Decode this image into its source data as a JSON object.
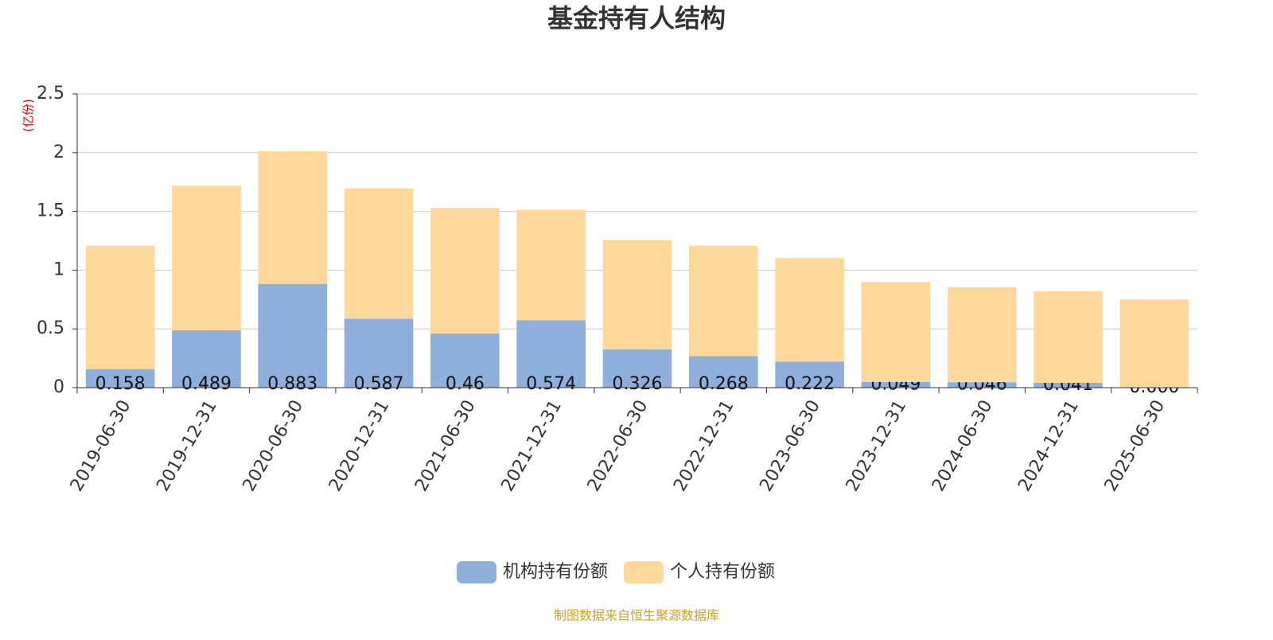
{
  "chart_data": {
    "type": "stacked_bar",
    "title": "基金持有人结构",
    "y_label": "(亿份)",
    "source": "制图数据来自恒生聚源数据库",
    "categories": [
      "2019-06-30",
      "2019-12-31",
      "2020-06-30",
      "2020-12-31",
      "2021-06-30",
      "2021-12-31",
      "2022-06-30",
      "2022-12-31",
      "2023-06-30",
      "2023-12-31",
      "2024-06-30",
      "2024-12-31",
      "2025-06-30"
    ],
    "series": [
      {
        "name": "机构持有份额",
        "color": "#8eaedb",
        "values": [
          0.158,
          0.489,
          0.883,
          0.587,
          0.46,
          0.574,
          0.326,
          0.268,
          0.222,
          0.049,
          0.046,
          0.041,
          0
        ],
        "value_labels": [
          "0.158",
          "0.489",
          "0.883",
          "0.587",
          "0.46",
          "0.574",
          "0.326",
          "0.268",
          "0.222",
          "0.049",
          "0.046",
          "0.041",
          "0.000"
        ]
      },
      {
        "name": "个人持有份额",
        "color": "#fdd89a",
        "values": [
          1.05,
          1.23,
          1.13,
          1.11,
          1.07,
          0.94,
          0.93,
          0.94,
          0.88,
          0.85,
          0.81,
          0.78,
          0.75
        ]
      }
    ],
    "ylim": [
      0,
      2.5
    ],
    "yticks": [
      0,
      0.5,
      1,
      1.5,
      2,
      2.5
    ],
    "grid": true
  }
}
